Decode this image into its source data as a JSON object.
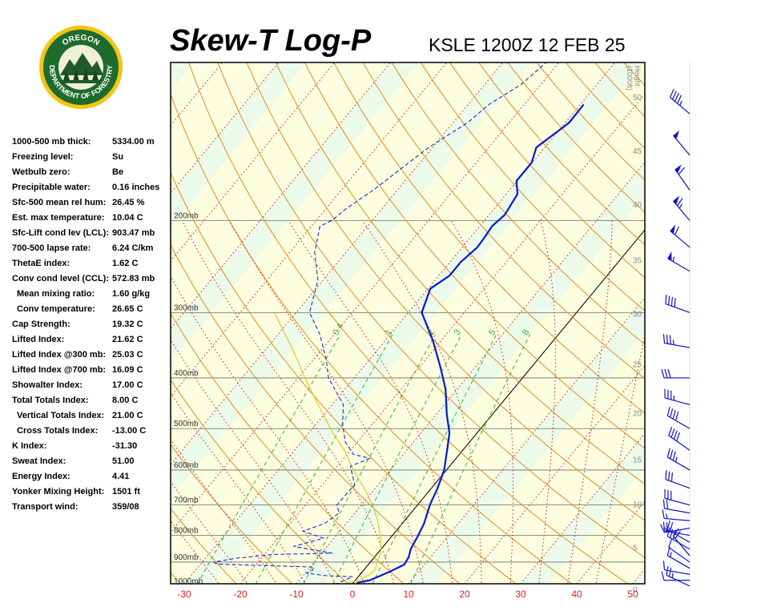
{
  "header": {
    "title": "Skew-T Log-P",
    "station_line": "KSLE 1200Z 12 FEB 25"
  },
  "logo": {
    "top_text": "OREGON",
    "bottom_text": "DEPARTMENT OF FORESTRY"
  },
  "indices": [
    {
      "label": "1000-500 mb thick:",
      "value": "5334.00 m",
      "indent": false
    },
    {
      "label": "Freezing level:",
      "value": "Su",
      "indent": false
    },
    {
      "label": "Wetbulb zero:",
      "value": "Be",
      "indent": false
    },
    {
      "label": "Precipitable water:",
      "value": "0.16 inches",
      "indent": false
    },
    {
      "label": "Sfc-500 mean rel hum:",
      "value": "26.45 %",
      "indent": false
    },
    {
      "label": "Est. max temperature:",
      "value": "10.04 C",
      "indent": false
    },
    {
      "label": "Sfc-Lift cond lev (LCL):",
      "value": "903.47 mb",
      "indent": false
    },
    {
      "label": "700-500 lapse rate:",
      "value": "6.24 C/km",
      "indent": false
    },
    {
      "label": "ThetaE index:",
      "value": "1.62 C",
      "indent": false
    },
    {
      "label": "Conv cond level (CCL):",
      "value": "572.83 mb",
      "indent": false
    },
    {
      "label": "Mean mixing ratio:",
      "value": "1.60 g/kg",
      "indent": true
    },
    {
      "label": "Conv temperature:",
      "value": "26.65 C",
      "indent": true
    },
    {
      "label": "Cap Strength:",
      "value": "19.32 C",
      "indent": false
    },
    {
      "label": "Lifted Index:",
      "value": "21.62 C",
      "indent": false
    },
    {
      "label": "Lifted Index @300 mb:",
      "value": "25.03 C",
      "indent": false
    },
    {
      "label": "Lifted Index @700 mb:",
      "value": "16.09 C",
      "indent": false
    },
    {
      "label": "Showalter Index:",
      "value": "17.00 C",
      "indent": false
    },
    {
      "label": "Total Totals Index:",
      "value": "8.00 C",
      "indent": false
    },
    {
      "label": "Vertical Totals Index:",
      "value": "21.00 C",
      "indent": true
    },
    {
      "label": "Cross Totals Index:",
      "value": "-13.00 C",
      "indent": true
    },
    {
      "label": "K Index:",
      "value": "-31.30",
      "indent": false
    },
    {
      "label": "Sweat Index:",
      "value": "51.00",
      "indent": false
    },
    {
      "label": "Energy Index:",
      "value": "4.41",
      "indent": false
    },
    {
      "label": "Yonker Mixing Height:",
      "value": "1501 ft",
      "indent": false
    },
    {
      "label": "Transport wind:",
      "value": "359/08",
      "indent": false
    }
  ],
  "chart_data": {
    "type": "line",
    "title": "Skew-T Log-P",
    "subtitle": "KSLE 1200Z 12 FEB 25",
    "x_axis": {
      "ticks": [
        -30,
        -20,
        -10,
        0,
        10,
        20,
        30,
        40,
        50
      ]
    },
    "pressure_levels": [
      {
        "label": "200mb",
        "p": 200
      },
      {
        "label": "300mb",
        "p": 300
      },
      {
        "label": "400mb",
        "p": 400
      },
      {
        "label": "500mb",
        "p": 500
      },
      {
        "label": "600mb",
        "p": 600
      },
      {
        "label": "700mb",
        "p": 700
      },
      {
        "label": "800mb",
        "p": 800
      },
      {
        "label": "900mb",
        "p": 900
      },
      {
        "label": "1000mb",
        "p": 1000
      }
    ],
    "height_axis": {
      "label_lines": [
        "Height",
        "(1000ft)"
      ],
      "ticks": [
        {
          "label": "0",
          "p": 1013
        },
        {
          "label": "5",
          "p": 843
        },
        {
          "label": "10",
          "p": 697
        },
        {
          "label": "15",
          "p": 572
        },
        {
          "label": "20",
          "p": 466
        },
        {
          "label": "25",
          "p": 376
        },
        {
          "label": "30",
          "p": 301
        },
        {
          "label": "35",
          "p": 238
        },
        {
          "label": "40",
          "p": 186
        },
        {
          "label": "45",
          "p": 147
        },
        {
          "label": "50",
          "p": 116
        }
      ]
    },
    "mixing_ratio_labels": [
      "0.4",
      "1",
      "2",
      "3",
      "5",
      "8"
    ],
    "temperature_profile": [
      {
        "p": 1010,
        "t": 0.9
      },
      {
        "p": 985,
        "t": 0.8
      },
      {
        "p": 975,
        "t": 2.6
      },
      {
        "p": 940,
        "t": 4.8
      },
      {
        "p": 910,
        "t": 6.4
      },
      {
        "p": 880,
        "t": 6.1
      },
      {
        "p": 850,
        "t": 5.3
      },
      {
        "p": 800,
        "t": 4.6
      },
      {
        "p": 760,
        "t": 3.9
      },
      {
        "p": 700,
        "t": 2.2
      },
      {
        "p": 650,
        "t": 1.1
      },
      {
        "p": 600,
        "t": -0.4
      },
      {
        "p": 550,
        "t": -2.8
      },
      {
        "p": 510,
        "t": -4.9
      },
      {
        "p": 470,
        "t": -8.1
      },
      {
        "p": 420,
        "t": -12.1
      },
      {
        "p": 380,
        "t": -16.4
      },
      {
        "p": 340,
        "t": -21.4
      },
      {
        "p": 300,
        "t": -27.6
      },
      {
        "p": 270,
        "t": -29.6
      },
      {
        "p": 255,
        "t": -28.1
      },
      {
        "p": 240,
        "t": -28.1
      },
      {
        "p": 225,
        "t": -27.3
      },
      {
        "p": 215,
        "t": -27.5
      },
      {
        "p": 205,
        "t": -27.8
      },
      {
        "p": 195,
        "t": -27.2
      },
      {
        "p": 178,
        "t": -28.0
      },
      {
        "p": 168,
        "t": -30.1
      },
      {
        "p": 155,
        "t": -30.1
      },
      {
        "p": 145,
        "t": -31.5
      },
      {
        "p": 130,
        "t": -29.3
      },
      {
        "p": 120,
        "t": -29.4
      }
    ],
    "dewpoint_profile": [
      {
        "p": 1005,
        "t": -3.7
      },
      {
        "p": 960,
        "t": -1.0
      },
      {
        "p": 955,
        "t": -6.2
      },
      {
        "p": 945,
        "t": -9.7
      },
      {
        "p": 935,
        "t": -9.1
      },
      {
        "p": 920,
        "t": -9.3
      },
      {
        "p": 908,
        "t": -27.1
      },
      {
        "p": 900,
        "t": -27.9
      },
      {
        "p": 885,
        "t": -24.6
      },
      {
        "p": 870,
        "t": -18.4
      },
      {
        "p": 868,
        "t": -13.0
      },
      {
        "p": 865,
        "t": -8.1
      },
      {
        "p": 840,
        "t": -16.0
      },
      {
        "p": 810,
        "t": -11.9
      },
      {
        "p": 785,
        "t": -16.6
      },
      {
        "p": 760,
        "t": -13.9
      },
      {
        "p": 725,
        "t": -12.8
      },
      {
        "p": 700,
        "t": -14.4
      },
      {
        "p": 640,
        "t": -14.2
      },
      {
        "p": 590,
        "t": -17.7
      },
      {
        "p": 570,
        "t": -15.4
      },
      {
        "p": 560,
        "t": -18.9
      },
      {
        "p": 530,
        "t": -22.2
      },
      {
        "p": 490,
        "t": -25.3
      },
      {
        "p": 450,
        "t": -28.0
      },
      {
        "p": 400,
        "t": -34.6
      },
      {
        "p": 370,
        "t": -37.6
      },
      {
        "p": 330,
        "t": -42.6
      },
      {
        "p": 300,
        "t": -47.6
      },
      {
        "p": 260,
        "t": -50.9
      },
      {
        "p": 230,
        "t": -55.6
      },
      {
        "p": 205,
        "t": -58.5
      },
      {
        "p": 200,
        "t": -57.2
      },
      {
        "p": 190,
        "t": -56.4
      },
      {
        "p": 175,
        "t": -54.3
      },
      {
        "p": 160,
        "t": -52.6
      },
      {
        "p": 145,
        "t": -50.7
      },
      {
        "p": 130,
        "t": -47.4
      },
      {
        "p": 120,
        "t": -46.3
      },
      {
        "p": 110,
        "t": -43.5
      },
      {
        "p": 100,
        "t": -42.3
      }
    ],
    "parcel_path": [
      {
        "p": 995,
        "t": -1.8
      },
      {
        "p": 975,
        "t": 0.6
      },
      {
        "p": 950,
        "t": 1.7
      },
      {
        "p": 930,
        "t": 2.0
      },
      {
        "p": 900,
        "t": 1.2
      },
      {
        "p": 860,
        "t": 0.4
      },
      {
        "p": 800,
        "t": -2.2
      },
      {
        "p": 750,
        "t": -4.8
      },
      {
        "p": 700,
        "t": -8.0
      },
      {
        "p": 650,
        "t": -12.0
      },
      {
        "p": 600,
        "t": -16.6
      },
      {
        "p": 550,
        "t": -21.1
      },
      {
        "p": 500,
        "t": -26.8
      },
      {
        "p": 450,
        "t": -32.5
      },
      {
        "p": 400,
        "t": -38.8
      },
      {
        "p": 350,
        "t": -45.6
      },
      {
        "p": 300,
        "t": -53.9
      }
    ],
    "wind_barbs": [
      {
        "p": 1000,
        "dir": 295,
        "speed": 25
      },
      {
        "p": 975,
        "dir": 270,
        "speed": 10
      },
      {
        "p": 950,
        "dir": 280,
        "speed": 10
      },
      {
        "p": 925,
        "dir": 300,
        "speed": 15
      },
      {
        "p": 900,
        "dir": 305,
        "speed": 10
      },
      {
        "p": 875,
        "dir": 320,
        "speed": 20
      },
      {
        "p": 850,
        "dir": 300,
        "speed": 30
      },
      {
        "p": 825,
        "dir": 300,
        "speed": 20
      },
      {
        "p": 800,
        "dir": 280,
        "speed": 20
      },
      {
        "p": 775,
        "dir": 260,
        "speed": 15
      },
      {
        "p": 750,
        "dir": 275,
        "speed": 15
      },
      {
        "p": 725,
        "dir": 280,
        "speed": 20
      },
      {
        "p": 700,
        "dir": 285,
        "speed": 30
      },
      {
        "p": 650,
        "dir": 290,
        "speed": 30
      },
      {
        "p": 600,
        "dir": 300,
        "speed": 35
      },
      {
        "p": 550,
        "dir": 305,
        "speed": 40
      },
      {
        "p": 500,
        "dir": 300,
        "speed": 40
      },
      {
        "p": 450,
        "dir": 285,
        "speed": 35
      },
      {
        "p": 400,
        "dir": 270,
        "speed": 30
      },
      {
        "p": 350,
        "dir": 280,
        "speed": 35
      },
      {
        "p": 300,
        "dir": 290,
        "speed": 40
      },
      {
        "p": 250,
        "dir": 300,
        "speed": 55
      },
      {
        "p": 225,
        "dir": 310,
        "speed": 60
      },
      {
        "p": 200,
        "dir": 320,
        "speed": 65
      },
      {
        "p": 175,
        "dir": 325,
        "speed": 60
      },
      {
        "p": 150,
        "dir": 320,
        "speed": 50
      },
      {
        "p": 125,
        "dir": 310,
        "speed": 45
      }
    ]
  },
  "colors": {
    "temperature": "#0019d6",
    "dewpoint": "#0019d6",
    "parcel": "#e2c829",
    "dry_adiabat": "#e58a1c",
    "isotherm": "#d11a1a",
    "mixing_ratio": "#2fb52f",
    "wind_barb": "#1111c8",
    "band_green": "#ecfbe9",
    "band_yellow": "#fdfde0",
    "tick_label": "#d62020"
  }
}
